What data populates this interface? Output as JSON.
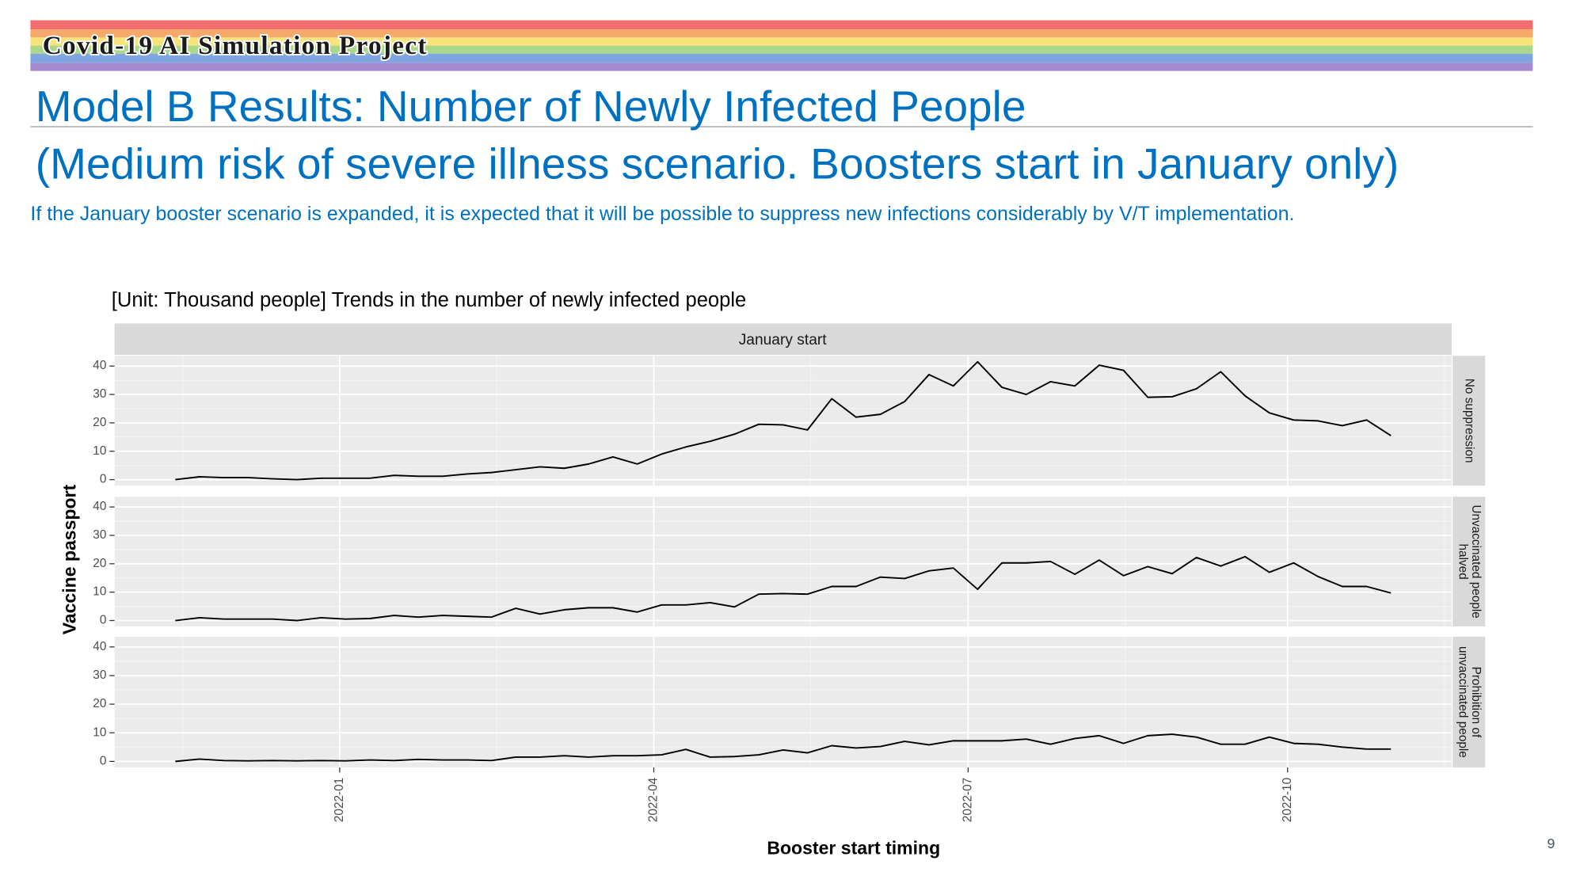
{
  "header": {
    "banner": "Covid-19 AI Simulation Project",
    "title": "Model B Results: Number of Newly Infected People",
    "subtitle": "(Medium risk of severe illness scenario. Boosters start in January only)",
    "description": "If the January booster scenario is expanded, it is expected that it will be possible to suppress new infections considerably by V/T implementation.",
    "page_number": 9
  },
  "chart_data": {
    "type": "line",
    "facet": "rows",
    "title": "[Unit: Thousand people] Trends in the number of newly infected people",
    "strip": "January start",
    "xlabel": "Booster start timing",
    "ylabel": "Vaccine passport",
    "x": [
      0,
      1,
      2,
      3,
      4,
      5,
      6,
      7,
      8,
      9,
      10,
      11,
      12,
      13,
      14,
      15,
      16,
      17,
      18,
      19,
      20,
      21,
      22,
      23,
      24,
      25,
      26,
      27,
      28,
      29,
      30,
      31,
      32,
      33,
      34,
      35,
      36,
      37,
      38,
      39,
      40,
      41,
      42,
      43,
      44,
      45,
      46,
      47,
      48,
      49,
      50
    ],
    "xlim": [
      -2.5,
      52.5
    ],
    "xticks": [
      {
        "value": 6.76,
        "label": "2022-01"
      },
      {
        "value": 19.68,
        "label": "2022-04"
      },
      {
        "value": 32.61,
        "label": "2022-07"
      },
      {
        "value": 45.75,
        "label": "2022-10"
      }
    ],
    "ylim": [
      -2.1,
      43.6
    ],
    "yticks": [
      0,
      10,
      20,
      30,
      40
    ],
    "grid": true,
    "series": [
      {
        "name": [
          "No suppression"
        ],
        "color": "#000000",
        "values": [
          0,
          1,
          0.7,
          0.7,
          0.3,
          0,
          0.5,
          0.5,
          0.5,
          1.5,
          1.2,
          1.2,
          2,
          2.5,
          3.5,
          4.5,
          4,
          5.5,
          8,
          5.5,
          9,
          11.5,
          13.5,
          16,
          19.5,
          19.3,
          17.5,
          28.5,
          22,
          23,
          27.5,
          37,
          33,
          41.5,
          32.5,
          30,
          34.5,
          33,
          40.3,
          38.5,
          29,
          29.2,
          32,
          38,
          29.5,
          23.5,
          21,
          20.7,
          19,
          21,
          15.5
        ]
      },
      {
        "name": [
          "Unvaccinated people",
          "halved"
        ],
        "color": "#000000",
        "values": [
          0,
          1,
          0.5,
          0.5,
          0.5,
          0,
          1,
          0.5,
          0.7,
          1.8,
          1.2,
          1.8,
          1.5,
          1.2,
          4.3,
          2.3,
          3.8,
          4.5,
          4.5,
          3,
          5.5,
          5.5,
          6.3,
          4.8,
          9.3,
          9.5,
          9.3,
          12,
          12,
          15.3,
          14.8,
          17.5,
          18.5,
          11,
          20.3,
          20.3,
          20.8,
          16.3,
          21.3,
          15.8,
          19,
          16.5,
          22.2,
          19.2,
          22.5,
          17,
          20.3,
          15.5,
          12,
          12,
          9.7
        ]
      },
      {
        "name": [
          "Prohibition of",
          "unvaccinated people"
        ],
        "color": "#000000",
        "values": [
          0,
          0.8,
          0.3,
          0.2,
          0.3,
          0.2,
          0.3,
          0.2,
          0.5,
          0.3,
          0.7,
          0.5,
          0.5,
          0.3,
          1.5,
          1.5,
          2,
          1.5,
          2,
          2,
          2.3,
          4.2,
          1.5,
          1.7,
          2.3,
          4,
          3,
          5.5,
          4.7,
          5.2,
          7,
          5.8,
          7.2,
          7.2,
          7.2,
          7.8,
          6,
          8,
          9,
          6.3,
          9,
          9.5,
          8.5,
          6,
          6,
          8.5,
          6.3,
          6,
          5,
          4.3,
          4.3
        ]
      }
    ]
  }
}
